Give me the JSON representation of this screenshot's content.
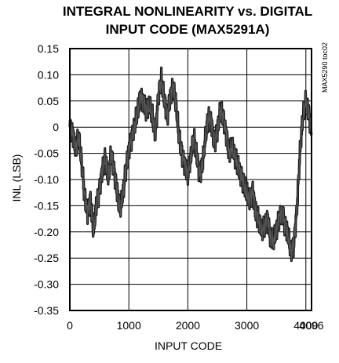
{
  "chart_data": {
    "type": "line",
    "title_lines": [
      "INTEGRAL NONLINEARITY vs. DIGITAL",
      "INPUT CODE (MAX5291A)"
    ],
    "xlabel": "INPUT CODE",
    "ylabel": "INL (LSB)",
    "figure_code": "MAX5290 toc02",
    "xlim": [
      0,
      4096
    ],
    "ylim": [
      -0.35,
      0.15
    ],
    "x_ticks": [
      0,
      1000,
      2000,
      3000,
      4000,
      4096
    ],
    "x_tick_labels": [
      "0",
      "1000",
      "2000",
      "3000",
      "4000",
      "4096"
    ],
    "y_ticks": [
      0.15,
      0.1,
      0.05,
      0,
      -0.05,
      -0.1,
      -0.15,
      -0.2,
      -0.25,
      -0.3,
      -0.35
    ],
    "y_tick_labels": [
      "0.15",
      "0.10",
      "0.05",
      "0",
      "-0.05",
      "-0.10",
      "-0.15",
      "-0.20",
      "-0.25",
      "-0.30",
      "-0.35"
    ],
    "grid": true,
    "series": [
      {
        "color": "#1a1a1a",
        "x": [
          0,
          50,
          100,
          150,
          200,
          250,
          300,
          350,
          400,
          450,
          500,
          550,
          600,
          650,
          700,
          750,
          800,
          850,
          900,
          950,
          1000,
          1050,
          1100,
          1150,
          1200,
          1250,
          1300,
          1350,
          1400,
          1450,
          1500,
          1550,
          1600,
          1650,
          1700,
          1750,
          1800,
          1850,
          1900,
          1950,
          2000,
          2050,
          2100,
          2150,
          2200,
          2250,
          2300,
          2350,
          2400,
          2450,
          2500,
          2550,
          2600,
          2650,
          2700,
          2750,
          2800,
          2850,
          2900,
          2950,
          3000,
          3050,
          3100,
          3150,
          3200,
          3250,
          3300,
          3350,
          3400,
          3450,
          3500,
          3550,
          3600,
          3650,
          3700,
          3750,
          3800,
          3850,
          3900,
          3950,
          4000,
          4050,
          4095
        ],
        "y": [
          0.0,
          -0.01,
          -0.04,
          -0.02,
          -0.07,
          -0.13,
          -0.16,
          -0.14,
          -0.2,
          -0.15,
          -0.12,
          -0.08,
          -0.06,
          -0.1,
          -0.05,
          -0.08,
          -0.12,
          -0.16,
          -0.13,
          -0.08,
          -0.04,
          -0.02,
          0.0,
          0.03,
          0.06,
          0.05,
          0.03,
          0.04,
          0.02,
          -0.01,
          0.06,
          0.09,
          0.05,
          0.02,
          0.06,
          0.08,
          0.04,
          -0.02,
          -0.05,
          -0.07,
          -0.09,
          -0.06,
          -0.02,
          -0.05,
          -0.09,
          -0.07,
          -0.02,
          0.02,
          0.01,
          -0.03,
          -0.01,
          0.03,
          0.02,
          -0.01,
          -0.05,
          -0.04,
          -0.06,
          -0.07,
          -0.09,
          -0.11,
          -0.13,
          -0.14,
          -0.12,
          -0.16,
          -0.18,
          -0.2,
          -0.19,
          -0.17,
          -0.21,
          -0.22,
          -0.2,
          -0.17,
          -0.16,
          -0.19,
          -0.21,
          -0.24,
          -0.22,
          -0.15,
          -0.05,
          0.02,
          0.05,
          0.03,
          -0.01
        ]
      }
    ]
  }
}
